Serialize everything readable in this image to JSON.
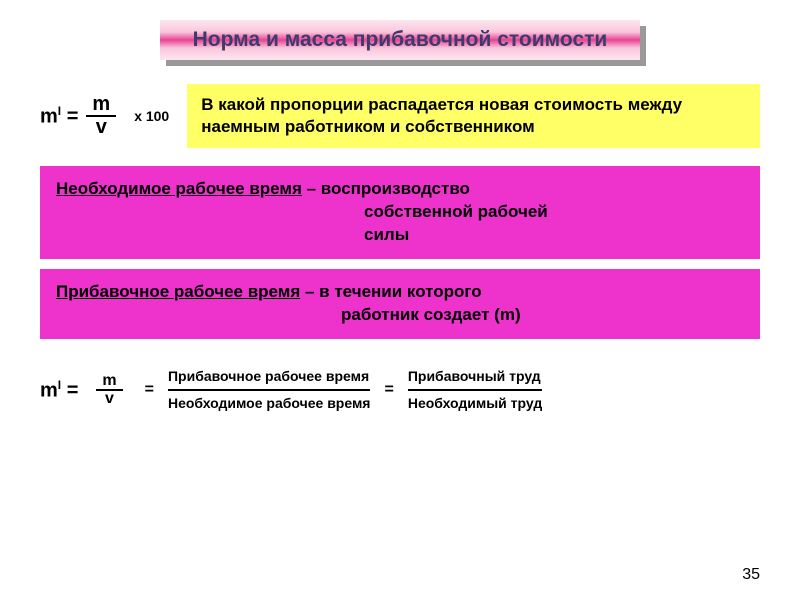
{
  "title": "Норма  и масса прибавочной стоимости",
  "formula1": {
    "lhs": "m",
    "lhs_sup": "I",
    "eq": " = ",
    "num": "m",
    "den": "v",
    "mult": "х 100"
  },
  "yellow": "   В какой пропорции  распадается новая стоимость между наемным работником и собственником",
  "box1": {
    "underlined": "Необходимое рабочее время",
    "tail": " – воспроизводство",
    "line2": "собственной  рабочей",
    "line3": "силы"
  },
  "box2": {
    "underlined": "Прибавочное рабочее время",
    "tail": " – в течении которого",
    "line2": "работник создает (m)"
  },
  "formula2": {
    "lhs": "m",
    "lhs_sup": "I",
    "eq": " = ",
    "num": "m",
    "den": "v",
    "frac2_num": "Прибавочное рабочее время",
    "frac2_den": "Необходимое рабочее время",
    "frac3_num": "Прибавочный труд",
    "frac3_den": "Необходимый труд"
  },
  "page": "35",
  "colors": {
    "magenta": "#ee33cc",
    "yellow": "#ffff66",
    "title_text": "#3b3b6d"
  }
}
